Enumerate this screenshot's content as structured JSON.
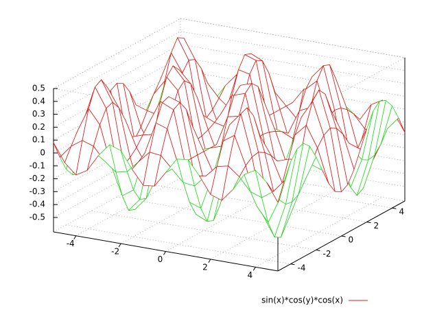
{
  "chart_data": {
    "type": "surface",
    "x": [
      -5,
      -4.5,
      -4,
      -3.5,
      -3,
      -2.5,
      -2,
      -1.5,
      -1,
      -0.5,
      0,
      0.5,
      1,
      1.5,
      2,
      2.5,
      3,
      3.5,
      4,
      4.5,
      5
    ],
    "y": [
      -5,
      -4.5,
      -4,
      -3.5,
      -3,
      -2.5,
      -2,
      -1.5,
      -1,
      -0.5,
      0,
      0.5,
      1,
      1.5,
      2,
      2.5,
      3,
      3.5,
      4,
      4.5,
      5
    ],
    "z": [
      [
        0.08,
        -0.06,
        -0.18,
        -0.25,
        -0.27,
        -0.22,
        -0.11,
        0.02,
        0.15,
        0.24,
        0.27,
        0.24,
        0.15,
        0.02,
        -0.11,
        -0.22,
        -0.27,
        -0.25,
        -0.18,
        -0.06,
        0.08
      ],
      [
        -0.06,
        0.04,
        0.13,
        0.19,
        0.2,
        0.17,
        0.09,
        -0.01,
        -0.11,
        -0.18,
        -0.21,
        -0.18,
        -0.11,
        -0.01,
        0.09,
        0.17,
        0.2,
        0.19,
        0.13,
        0.04,
        -0.06
      ],
      [
        -0.14,
        0.1,
        0.32,
        0.46,
        0.49,
        0.4,
        0.21,
        -0.03,
        -0.27,
        -0.43,
        -0.49,
        -0.43,
        -0.27,
        -0.03,
        0.21,
        0.4,
        0.49,
        0.46,
        0.32,
        0.1,
        -0.14
      ],
      [
        -0.09,
        0.07,
        0.21,
        0.31,
        0.33,
        0.26,
        0.14,
        -0.02,
        -0.18,
        -0.29,
        -0.33,
        -0.29,
        -0.18,
        -0.02,
        0.14,
        0.26,
        0.33,
        0.31,
        0.21,
        0.07,
        -0.09
      ],
      [
        0.04,
        -0.03,
        -0.09,
        -0.13,
        -0.14,
        -0.11,
        -0.06,
        0.01,
        0.08,
        0.12,
        0.14,
        0.12,
        0.08,
        0.01,
        -0.06,
        -0.11,
        -0.14,
        -0.13,
        -0.09,
        -0.03,
        0.04
      ],
      [
        0.14,
        -0.1,
        -0.31,
        -0.45,
        -0.47,
        -0.38,
        -0.2,
        0.03,
        0.26,
        0.42,
        0.48,
        0.42,
        0.26,
        0.03,
        -0.2,
        -0.38,
        -0.47,
        -0.45,
        -0.31,
        -0.1,
        0.14
      ],
      [
        0.11,
        -0.08,
        -0.25,
        -0.35,
        -0.37,
        -0.3,
        -0.16,
        0.03,
        0.2,
        0.33,
        0.38,
        0.33,
        0.2,
        0.03,
        -0.16,
        -0.3,
        -0.37,
        -0.35,
        -0.25,
        -0.08,
        0.11
      ],
      [
        -0.02,
        0.01,
        0.05,
        0.07,
        0.07,
        0.06,
        0.03,
        -0.01,
        -0.04,
        -0.06,
        -0.07,
        -0.06,
        -0.04,
        -0.01,
        0.03,
        0.06,
        0.07,
        0.07,
        0.05,
        0.01,
        -0.02
      ],
      [
        -0.13,
        0.1,
        0.3,
        0.43,
        0.45,
        0.36,
        0.19,
        -0.03,
        -0.25,
        -0.4,
        -0.45,
        -0.4,
        -0.25,
        -0.03,
        0.19,
        0.36,
        0.45,
        0.43,
        0.3,
        0.1,
        -0.13
      ],
      [
        -0.12,
        0.09,
        0.27,
        0.39,
        0.42,
        0.34,
        0.18,
        -0.03,
        -0.23,
        -0.37,
        -0.42,
        -0.37,
        -0.23,
        -0.03,
        0.18,
        0.34,
        0.42,
        0.39,
        0.27,
        0.09,
        -0.12
      ],
      [
        0,
        0,
        0,
        0,
        0,
        0,
        0,
        0,
        0,
        0,
        0,
        0,
        0,
        0,
        0,
        0,
        0,
        0,
        0,
        0,
        0
      ],
      [
        0.12,
        -0.09,
        -0.27,
        -0.39,
        -0.42,
        -0.34,
        -0.18,
        0.03,
        0.23,
        0.37,
        0.42,
        0.37,
        0.23,
        0.03,
        -0.18,
        -0.34,
        -0.42,
        -0.39,
        -0.27,
        -0.09,
        0.12
      ],
      [
        0.13,
        -0.1,
        -0.3,
        -0.43,
        -0.45,
        -0.36,
        -0.19,
        0.03,
        0.25,
        0.4,
        0.45,
        0.4,
        0.25,
        0.03,
        -0.19,
        -0.36,
        -0.45,
        -0.43,
        -0.3,
        -0.1,
        0.13
      ],
      [
        0.02,
        -0.01,
        -0.05,
        -0.07,
        -0.07,
        -0.06,
        -0.03,
        0.01,
        0.04,
        0.06,
        0.07,
        0.06,
        0.04,
        0.01,
        -0.03,
        -0.06,
        -0.07,
        -0.07,
        -0.05,
        -0.01,
        0.02
      ],
      [
        -0.11,
        0.08,
        0.25,
        0.35,
        0.37,
        0.3,
        0.16,
        -0.03,
        -0.2,
        -0.33,
        -0.38,
        -0.33,
        -0.2,
        -0.03,
        0.16,
        0.3,
        0.37,
        0.35,
        0.25,
        0.08,
        -0.11
      ],
      [
        -0.14,
        0.1,
        0.31,
        0.45,
        0.47,
        0.38,
        0.2,
        -0.03,
        -0.26,
        -0.42,
        -0.48,
        -0.42,
        -0.26,
        -0.03,
        0.2,
        0.38,
        0.47,
        0.45,
        0.31,
        0.1,
        -0.14
      ],
      [
        -0.04,
        0.03,
        0.09,
        0.13,
        0.14,
        0.11,
        0.06,
        -0.01,
        -0.08,
        -0.12,
        -0.14,
        -0.12,
        -0.08,
        -0.01,
        0.06,
        0.11,
        0.14,
        0.13,
        0.09,
        0.03,
        -0.04
      ],
      [
        0.09,
        -0.07,
        -0.21,
        -0.31,
        -0.33,
        -0.26,
        -0.14,
        0.02,
        0.18,
        0.29,
        0.33,
        0.29,
        0.18,
        0.02,
        -0.14,
        -0.26,
        -0.33,
        -0.31,
        -0.21,
        -0.07,
        0.09
      ],
      [
        0.14,
        -0.1,
        -0.32,
        -0.46,
        -0.49,
        -0.4,
        -0.21,
        0.03,
        0.27,
        0.43,
        0.49,
        0.43,
        0.27,
        0.03,
        -0.21,
        -0.4,
        -0.49,
        -0.46,
        -0.32,
        -0.1,
        0.14
      ],
      [
        0.06,
        -0.04,
        -0.13,
        -0.19,
        -0.2,
        -0.17,
        -0.09,
        0.01,
        0.11,
        0.18,
        0.21,
        0.18,
        0.11,
        0.01,
        -0.09,
        -0.17,
        -0.2,
        -0.19,
        -0.13,
        -0.04,
        0.06
      ],
      [
        -0.08,
        0.06,
        0.18,
        0.25,
        0.27,
        0.22,
        0.11,
        -0.02,
        -0.15,
        -0.24,
        -0.27,
        -0.24,
        -0.15,
        -0.02,
        0.11,
        0.22,
        0.27,
        0.25,
        0.18,
        0.06,
        -0.08
      ]
    ],
    "series": [
      {
        "name": "sin(x)*cos(y)*cos(x)",
        "color": "#e01818",
        "bottom_color": "#22dd22"
      }
    ],
    "xlim": [
      -5,
      5
    ],
    "ylim": [
      -5,
      5
    ],
    "zlim": [
      -0.5,
      0.5
    ],
    "xticks": [
      -4,
      -2,
      0,
      2,
      4
    ],
    "yticks": [
      -4,
      -2,
      0,
      2,
      4
    ],
    "zticks": [
      -0.5,
      -0.4,
      -0.3,
      -0.2,
      -0.1,
      0,
      0.1,
      0.2,
      0.3,
      0.4,
      0.5
    ],
    "grid": true,
    "legend": "bottom-right"
  }
}
